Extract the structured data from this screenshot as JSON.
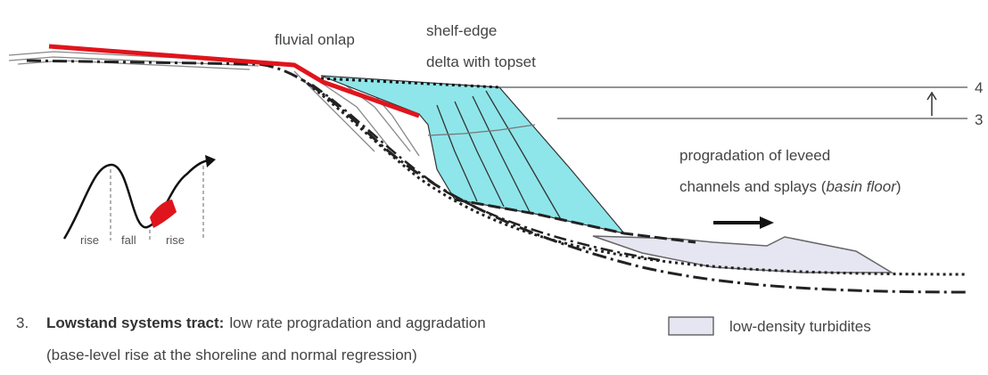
{
  "labels": {
    "fluvial_onlap": "fluvial onlap",
    "shelf_edge_delta": [
      "shelf-edge",
      "delta with topset"
    ],
    "levels": [
      "4",
      "3"
    ],
    "progradation": {
      "line1": "progradation of leveed",
      "line2_prefix": "channels and splays (",
      "line2_italic": "basin floor",
      "line2_suffix": ")"
    }
  },
  "curve": {
    "labels": [
      "rise",
      "fall",
      "rise"
    ]
  },
  "caption": {
    "number": "3.",
    "title": "Lowstand systems tract:",
    "text": "low rate progradation and aggradation",
    "line2": "(base-level rise at the shoreline and normal regression)"
  },
  "legend": {
    "label": "low-density turbidites"
  }
}
